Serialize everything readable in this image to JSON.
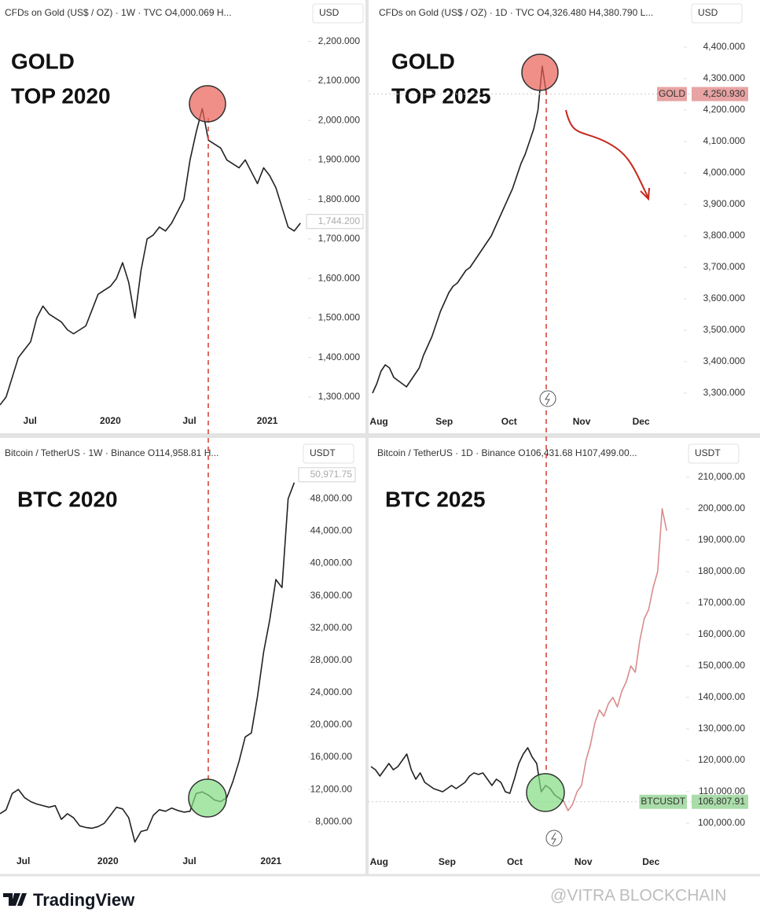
{
  "chart_data": [
    {
      "type": "line",
      "header": "CFDs on Gold (US$ / OZ) · 1W · TVC  O4,000.069  H...",
      "currency": "USD",
      "annotation": [
        "GOLD",
        "TOP 2020"
      ],
      "series": [
        {
          "color": "#222222",
          "values": [
            1280,
            1300,
            1350,
            1400,
            1420,
            1440,
            1500,
            1530,
            1510,
            1500,
            1490,
            1470,
            1460,
            1470,
            1480,
            1520,
            1560,
            1570,
            1580,
            1600,
            1640,
            1590,
            1500,
            1620,
            1700,
            1710,
            1730,
            1720,
            1740,
            1770,
            1800,
            1900,
            1970,
            2030,
            1950,
            1940,
            1930,
            1900,
            1890,
            1880,
            1900,
            1870,
            1840,
            1880,
            1860,
            1830,
            1780,
            1730,
            1720,
            1740
          ]
        }
      ],
      "xlim": [
        0,
        50
      ],
      "xticks": [
        {
          "value": 4.9,
          "label": "Jul"
        },
        {
          "value": 18,
          "label": "2020"
        },
        {
          "value": 30.9,
          "label": "Jul"
        },
        {
          "value": 43.6,
          "label": "2021"
        }
      ],
      "ylim": [
        1270,
        2245
      ],
      "yticks": [
        {
          "value": 1300,
          "label": "1,300.000"
        },
        {
          "value": 1400,
          "label": "1,400.000"
        },
        {
          "value": 1500,
          "label": "1,500.000"
        },
        {
          "value": 1600,
          "label": "1,600.000"
        },
        {
          "value": 1700,
          "label": "1,700.000"
        },
        {
          "value": 1800,
          "label": "1,800.000"
        },
        {
          "value": 1900,
          "label": "1,900.000"
        },
        {
          "value": 2000,
          "label": "2,000.000"
        },
        {
          "value": 2100,
          "label": "2,100.000"
        },
        {
          "value": 2200,
          "label": "2,200.000"
        }
      ],
      "last_price": {
        "value": 1744.2,
        "label": "1,744.200",
        "color": "#ffffff"
      }
    },
    {
      "type": "line",
      "header": "CFDs on Gold (US$ / OZ) · 1D · TVC  O4,326.480  H4,380.790  L...",
      "currency": "USD",
      "annotation": [
        "GOLD",
        "TOP 2025"
      ],
      "series": [
        {
          "color": "#222222",
          "values": [
            3300,
            3330,
            3370,
            3390,
            3380,
            3350,
            3340,
            3330,
            3320,
            3340,
            3360,
            3380,
            3420,
            3450,
            3480,
            3520,
            3560,
            3590,
            3620,
            3640,
            3650,
            3670,
            3690,
            3700,
            3720,
            3740,
            3760,
            3780,
            3800,
            3830,
            3860,
            3890,
            3920,
            3950,
            3990,
            4030,
            4060,
            4100,
            4140,
            4200,
            4340,
            4250
          ]
        }
      ],
      "xlim": [
        0,
        73
      ],
      "xticks": [
        {
          "value": 1.5,
          "label": "Aug"
        },
        {
          "value": 16.9,
          "label": "Sep"
        },
        {
          "value": 32.2,
          "label": "Oct"
        },
        {
          "value": 49.3,
          "label": "Nov"
        },
        {
          "value": 63.3,
          "label": "Dec"
        }
      ],
      "ylim": [
        3250,
        4475
      ],
      "yticks": [
        {
          "value": 3300,
          "label": "3,300.000"
        },
        {
          "value": 3400,
          "label": "3,400.000"
        },
        {
          "value": 3500,
          "label": "3,500.000"
        },
        {
          "value": 3600,
          "label": "3,600.000"
        },
        {
          "value": 3700,
          "label": "3,700.000"
        },
        {
          "value": 3800,
          "label": "3,800.000"
        },
        {
          "value": 3900,
          "label": "3,900.000"
        },
        {
          "value": 4000,
          "label": "4,000.000"
        },
        {
          "value": 4100,
          "label": "4,100.000"
        },
        {
          "value": 4200,
          "label": "4,200.000"
        },
        {
          "value": 4300,
          "label": "4,300.000"
        },
        {
          "value": 4400,
          "label": "4,400.000"
        }
      ],
      "price_tag": "GOLD",
      "last_price": {
        "value": 4250.93,
        "label": "4,250.930",
        "color": "#e8a3a3"
      }
    },
    {
      "type": "line",
      "header": "Bitcoin / TetherUS · 1W · Binance  O114,958.81  H...",
      "currency": "USDT",
      "annotation": [
        "BTC 2020"
      ],
      "series": [
        {
          "color": "#222222",
          "values": [
            9000,
            9500,
            11500,
            12000,
            11000,
            10500,
            10200,
            10000,
            9800,
            10000,
            8300,
            9000,
            8500,
            7500,
            7300,
            7200,
            7400,
            7800,
            8800,
            9800,
            9600,
            8500,
            5500,
            6800,
            7000,
            8800,
            9500,
            9300,
            9700,
            9400,
            9200,
            9300,
            11500,
            11700,
            11300,
            10700,
            10500,
            11000,
            13000,
            15500,
            18500,
            19000,
            23500,
            29000,
            33000,
            38000,
            37000,
            48000,
            50000
          ]
        }
      ],
      "xlim": [
        0,
        50
      ],
      "xticks": [
        {
          "value": 3.8,
          "label": "Jul"
        },
        {
          "value": 17.6,
          "label": "2020"
        },
        {
          "value": 30.9,
          "label": "Jul"
        },
        {
          "value": 44.2,
          "label": "2021"
        }
      ],
      "ylim": [
        5000,
        53000
      ],
      "yticks": [
        {
          "value": 8000,
          "label": "8,000.00"
        },
        {
          "value": 12000,
          "label": "12,000.00"
        },
        {
          "value": 16000,
          "label": "16,000.00"
        },
        {
          "value": 20000,
          "label": "20,000.00"
        },
        {
          "value": 24000,
          "label": "24,000.00"
        },
        {
          "value": 28000,
          "label": "28,000.00"
        },
        {
          "value": 32000,
          "label": "32,000.00"
        },
        {
          "value": 36000,
          "label": "36,000.00"
        },
        {
          "value": 40000,
          "label": "40,000.00"
        },
        {
          "value": 44000,
          "label": "44,000.00"
        },
        {
          "value": 48000,
          "label": "48,000.00"
        }
      ],
      "last_price": {
        "value": 50971.75,
        "label": "50,971.75",
        "color": "#ffffff"
      }
    },
    {
      "type": "line",
      "header": "Bitcoin / TetherUS · 1D · Binance  O106,431.68  H107,499.00...",
      "currency": "USDT",
      "annotation": [
        "BTC 2025"
      ],
      "series": [
        {
          "color": "#222222",
          "values": [
            118000,
            117000,
            115000,
            117000,
            119000,
            117000,
            118000,
            120000,
            122000,
            117000,
            114000,
            116000,
            113000,
            112000,
            111000,
            110500,
            110000,
            111000,
            112000,
            111000,
            112000,
            113000,
            115000,
            116000,
            115500,
            116000,
            114000,
            112000,
            114000,
            113000,
            110000,
            109500,
            114000,
            119000,
            122000,
            124000,
            121000,
            119000,
            110000,
            112000,
            111000,
            109000,
            108000,
            107000,
            null,
            null,
            null,
            null,
            null,
            null,
            null,
            null,
            null,
            null,
            null,
            null,
            null,
            null,
            null,
            null,
            null,
            null,
            null,
            null,
            null,
            null,
            null
          ]
        },
        {
          "color": "#d98c8c",
          "values": [
            null,
            null,
            null,
            null,
            null,
            null,
            null,
            null,
            null,
            null,
            null,
            null,
            null,
            null,
            null,
            null,
            null,
            null,
            null,
            null,
            null,
            null,
            null,
            null,
            null,
            null,
            null,
            null,
            null,
            null,
            null,
            null,
            null,
            null,
            null,
            null,
            null,
            null,
            null,
            null,
            null,
            null,
            null,
            107000,
            104000,
            106000,
            110000,
            112000,
            120000,
            125000,
            132000,
            136000,
            134000,
            138000,
            140000,
            137000,
            142000,
            145000,
            150000,
            148000,
            158000,
            165000,
            168000,
            175000,
            180000,
            200000,
            193000
          ]
        }
      ],
      "xlim": [
        0,
        70
      ],
      "xticks": [
        {
          "value": 1.8,
          "label": "Aug"
        },
        {
          "value": 17,
          "label": "Sep"
        },
        {
          "value": 32.1,
          "label": "Oct"
        },
        {
          "value": 47.4,
          "label": "Nov"
        },
        {
          "value": 62.5,
          "label": "Dec"
        }
      ],
      "ylim": [
        95000,
        215000
      ],
      "yticks": [
        {
          "value": 100000,
          "label": "100,000.00"
        },
        {
          "value": 110000,
          "label": "110,000.00"
        },
        {
          "value": 120000,
          "label": "120,000.00"
        },
        {
          "value": 130000,
          "label": "130,000.00"
        },
        {
          "value": 140000,
          "label": "140,000.00"
        },
        {
          "value": 150000,
          "label": "150,000.00"
        },
        {
          "value": 160000,
          "label": "160,000.00"
        },
        {
          "value": 170000,
          "label": "170,000.00"
        },
        {
          "value": 180000,
          "label": "180,000.00"
        },
        {
          "value": 190000,
          "label": "190,000.00"
        },
        {
          "value": 200000,
          "label": "200,000.00"
        },
        {
          "value": 210000,
          "label": "210,000.00"
        }
      ],
      "price_tag": "BTCUSDT",
      "last_price": {
        "value": 106807.91,
        "label": "106,807.91",
        "color": "#a9dca9"
      }
    }
  ],
  "footer": {
    "logo": "TradingView",
    "watermark": "@VITRA BLOCKCHAIN"
  }
}
